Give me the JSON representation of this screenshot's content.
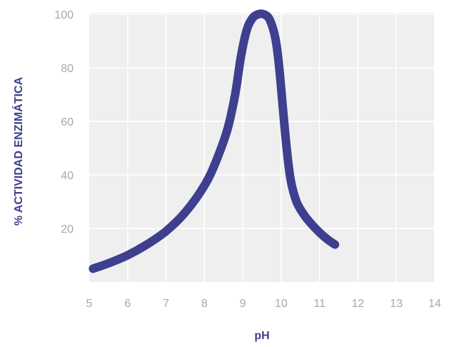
{
  "chart_data": {
    "type": "line",
    "title": "",
    "xlabel": "pH",
    "ylabel": "% ACTIVIDAD ENZIMÁTICA",
    "xlim": [
      5,
      14
    ],
    "ylim": [
      0,
      100
    ],
    "x_ticks": [
      "5",
      "6",
      "7",
      "8",
      "9",
      "10",
      "11",
      "12",
      "13",
      "14"
    ],
    "y_ticks": [
      "20",
      "40",
      "60",
      "80",
      "100"
    ],
    "grid": true,
    "legend": "none",
    "colors": {
      "line": "#3f3f8f",
      "axis_title": "#3f3f8f",
      "plot_background": "#efefef",
      "grid": "#ffffff",
      "tick_label": "#a8a8a8"
    },
    "series": [
      {
        "x": [
          5.1,
          5.5,
          6.0,
          6.5,
          7.0,
          7.5,
          8.0,
          8.3,
          8.6,
          8.8,
          8.95,
          9.1,
          9.25,
          9.4,
          9.55,
          9.7,
          9.85,
          9.95,
          10.05,
          10.15,
          10.25,
          10.4,
          10.6,
          10.8,
          11.0,
          11.2,
          11.4
        ],
        "y": [
          5,
          7,
          10,
          14,
          19,
          26,
          36,
          45,
          57,
          70,
          84,
          94,
          98.5,
          100,
          100,
          98,
          91,
          80,
          64,
          49,
          38,
          30,
          25,
          21.5,
          18.5,
          16,
          14
        ]
      }
    ]
  }
}
